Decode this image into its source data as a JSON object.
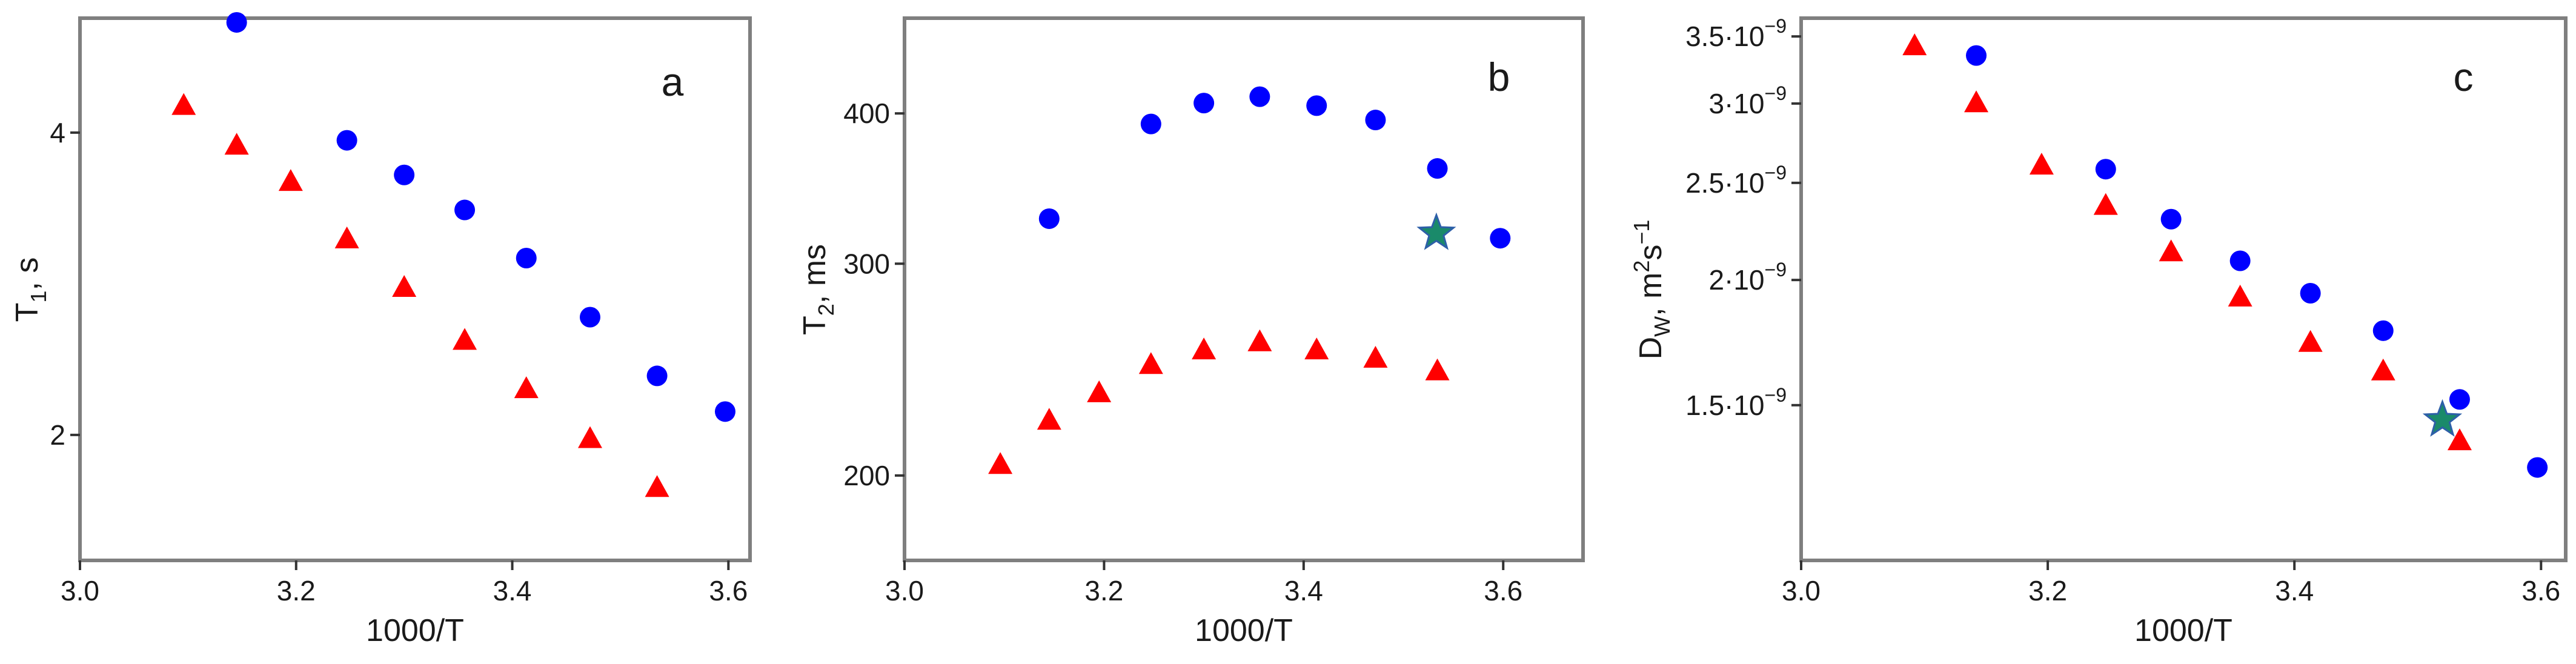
{
  "chart_data": [
    {
      "type": "scatter",
      "panel_label": "a",
      "xlabel": "1000/T",
      "ylabel": "T1, s",
      "ylabel_main": "T",
      "ylabel_sub": "1",
      "ylabel_tail": ", s",
      "xlim": [
        3.0,
        3.62
      ],
      "ylim": [
        1.5,
        5.2
      ],
      "y_scale": "log",
      "x_ticks": [
        "3.0",
        "3.2",
        "3.4",
        "3.6"
      ],
      "y_ticks": [
        "2",
        "4"
      ],
      "series": [
        {
          "color": "#0000ff",
          "marker": "circle",
          "x": [
            3.145,
            3.247,
            3.3,
            3.356,
            3.413,
            3.472,
            3.534,
            3.597
          ],
          "y": [
            5.15,
            3.93,
            3.63,
            3.35,
            3.0,
            2.62,
            2.29,
            2.11
          ]
        },
        {
          "color": "#ff0000",
          "marker": "triangle",
          "x": [
            3.096,
            3.145,
            3.195,
            3.247,
            3.3,
            3.356,
            3.413,
            3.472,
            3.534
          ],
          "y": [
            4.25,
            3.88,
            3.57,
            3.13,
            2.8,
            2.48,
            2.22,
            1.98,
            1.77
          ]
        }
      ]
    },
    {
      "type": "scatter",
      "panel_label": "b",
      "xlabel": "1000/T",
      "ylabel": "T2, ms",
      "ylabel_main": "T",
      "ylabel_sub": "2",
      "ylabel_tail": ", ms",
      "xlim": [
        3.0,
        3.68
      ],
      "ylim": [
        170,
        480
      ],
      "y_scale": "log",
      "x_ticks": [
        "3.0",
        "3.2",
        "3.4",
        "3.6"
      ],
      "y_ticks": [
        "200",
        "300",
        "400"
      ],
      "series": [
        {
          "color": "#0000ff",
          "marker": "circle",
          "x": [
            3.145,
            3.247,
            3.3,
            3.356,
            3.413,
            3.472,
            3.534,
            3.597
          ],
          "y": [
            327,
            392,
            408,
            413,
            406,
            395,
            360,
            315
          ]
        },
        {
          "color": "#ff0000",
          "marker": "triangle",
          "x": [
            3.096,
            3.145,
            3.195,
            3.247,
            3.3,
            3.356,
            3.413,
            3.472,
            3.534
          ],
          "y": [
            204,
            222,
            234,
            247,
            254,
            258,
            254,
            250,
            244
          ]
        },
        {
          "color": "#1a8a6a",
          "marker": "star",
          "x": [
            3.533
          ],
          "y": [
            318
          ]
        }
      ]
    },
    {
      "type": "scatter",
      "panel_label": "c",
      "xlabel": "1000/T",
      "ylabel": "DW, m2s-1",
      "ylabel_main": "D",
      "ylabel_sub": "W",
      "ylabel_tail": ", m",
      "ylabel_sup1": "2",
      "ylabel_mid": "s",
      "ylabel_sup2": "−1",
      "xlim": [
        3.0,
        3.62
      ],
      "ylim": [
        1.05e-09,
        3.65e-09
      ],
      "y_scale": "log",
      "x_ticks": [
        "3.0",
        "3.2",
        "3.4",
        "3.6"
      ],
      "y_ticks": [
        {
          "mantissa": "1.5·10",
          "exp": "−9",
          "value": 1.5e-09
        },
        {
          "mantissa": "2·10",
          "exp": "−9",
          "value": 2e-09
        },
        {
          "mantissa": "2.5·10",
          "exp": "−9",
          "value": 2.5e-09
        },
        {
          "mantissa": "3·10",
          "exp": "−9",
          "value": 3e-09
        },
        {
          "mantissa": "3.5·10",
          "exp": "−9",
          "value": 3.5e-09
        }
      ],
      "series": [
        {
          "color": "#0000ff",
          "marker": "circle",
          "x": [
            3.142,
            3.247,
            3.3,
            3.356,
            3.413,
            3.472,
            3.534,
            3.597
          ],
          "y": [
            3.35e-09,
            2.58e-09,
            2.3e-09,
            2.09e-09,
            1.94e-09,
            1.78e-09,
            1.52e-09,
            1.3e-09
          ]
        },
        {
          "color": "#ff0000",
          "marker": "triangle",
          "x": [
            3.092,
            3.142,
            3.195,
            3.247,
            3.3,
            3.356,
            3.413,
            3.472,
            3.534
          ],
          "y": [
            3.42e-09,
            3e-09,
            2.6e-09,
            2.37e-09,
            2.13e-09,
            1.92e-09,
            1.73e-09,
            1.62e-09,
            1.38e-09
          ]
        },
        {
          "color": "#1a8a6a",
          "marker": "star",
          "x": [
            3.52
          ],
          "y": [
            1.45e-09
          ]
        }
      ]
    }
  ]
}
